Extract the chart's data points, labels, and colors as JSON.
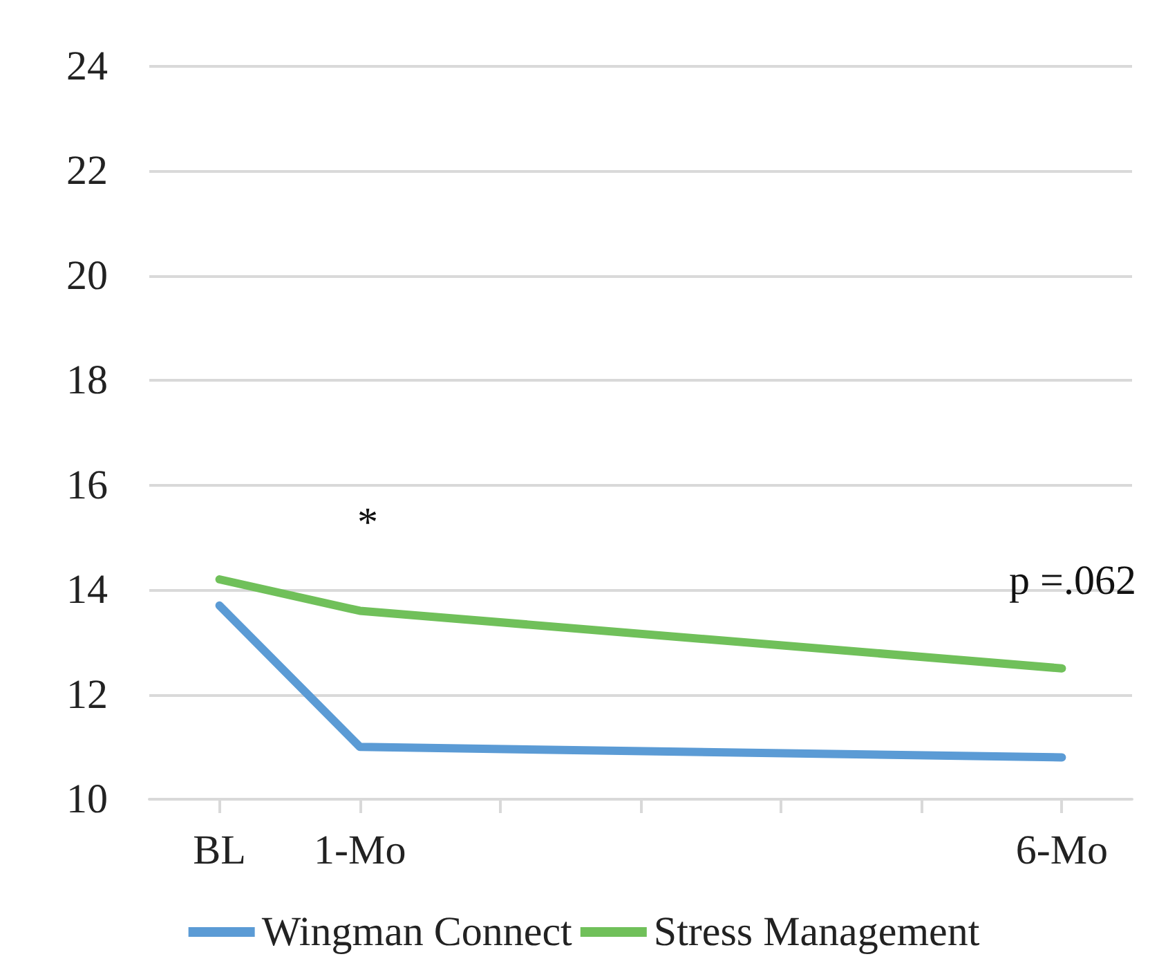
{
  "chart_data": {
    "type": "line",
    "categories": [
      "BL",
      "1-Mo",
      null,
      null,
      null,
      null,
      "6-Mo"
    ],
    "series": [
      {
        "name": "Wingman Connect",
        "color": "#5b9bd5",
        "values": [
          13.7,
          11.0,
          null,
          null,
          null,
          null,
          10.8
        ]
      },
      {
        "name": "Stress Management",
        "color": "#70c05a",
        "values": [
          14.2,
          13.6,
          null,
          null,
          null,
          null,
          12.5
        ]
      }
    ],
    "ylim": [
      10,
      24
    ],
    "yticks": [
      10,
      12,
      14,
      16,
      18,
      20,
      22,
      24
    ],
    "grid": "y",
    "legend": "bottom",
    "marker": "none",
    "line_style": "solid",
    "annotations": [
      "*",
      "p =.062"
    ]
  }
}
